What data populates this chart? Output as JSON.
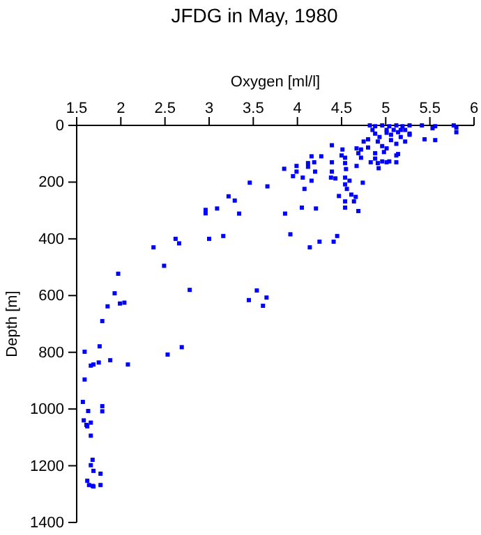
{
  "chart_data": {
    "type": "scatter",
    "title": "JFDG in May, 1980",
    "xlabel": "Oxygen [ml/l]",
    "ylabel": "Depth [m]",
    "xlim": [
      1.5,
      6
    ],
    "xticks": [
      1.5,
      2,
      2.5,
      3,
      3.5,
      4,
      4.5,
      5,
      5.5,
      6
    ],
    "ylim": [
      1400,
      0
    ],
    "yticks": [
      0,
      200,
      400,
      600,
      800,
      1000,
      1200,
      1400
    ],
    "marker": "square",
    "grid": false,
    "series": [
      {
        "color": "#0000ff",
        "x": [
          4.82,
          4.88,
          4.96,
          5.04,
          5.12,
          5.19,
          5.27,
          5.41,
          5.56,
          5.77,
          5.8,
          4.85,
          5.01,
          5.09,
          5.17,
          5.22,
          4.88,
          5.01,
          5.14,
          5.27,
          5.53,
          5.8,
          4.8,
          4.91,
          5.06,
          5.17,
          5.27,
          5.44,
          5.56,
          4.75,
          4.93,
          5.06,
          5.22,
          4.96,
          5.12,
          4.8,
          5.01,
          4.39,
          4.67,
          4.51,
          4.72,
          4.88,
          4.98,
          5.12,
          4.5,
          4.69,
          4.88,
          5.14,
          5.01,
          4.16,
          4.27,
          4.54,
          4.72,
          4.83,
          4.96,
          5.12,
          4.39,
          4.54,
          4.67,
          4.91,
          5.04,
          4.55,
          4.92,
          4.12,
          4.19,
          4.39,
          4.2,
          3.99,
          3.85,
          4.12,
          4.74,
          4.54,
          4.54,
          4.59,
          4.38,
          4.56,
          4.61,
          4.66,
          4.47,
          4.54,
          4.64,
          3.99,
          4.43,
          4.06,
          4.16,
          3.95,
          4.08,
          3.46,
          3.66,
          3.22,
          3.29,
          2.96,
          2.96,
          3.09,
          3.34,
          3.86,
          4.05,
          4.21,
          4.54,
          4.69,
          3.92,
          4.14,
          4.25,
          4.41,
          4.45,
          3.0,
          3.16,
          2.62,
          2.66,
          2.37,
          2.49,
          1.97,
          2.78,
          1.93,
          1.85,
          1.99,
          2.04,
          1.79,
          3.45,
          3.54,
          3.61,
          3.65,
          1.59,
          1.76,
          1.88,
          2.69,
          2.53,
          1.66,
          1.69,
          1.75,
          2.08,
          1.59,
          1.57,
          1.63,
          1.79,
          1.79,
          1.58,
          1.61,
          1.66,
          1.62,
          1.66,
          1.68,
          1.66,
          1.69,
          1.77,
          1.62,
          1.64,
          1.68,
          1.69,
          1.77
        ],
        "values": [
          0,
          3,
          0,
          3,
          0,
          3,
          0,
          0,
          3,
          0,
          8,
          16,
          16,
          16,
          16,
          16,
          29,
          26,
          24,
          29,
          10,
          24,
          49,
          57,
          33,
          41,
          33,
          49,
          52,
          57,
          41,
          52,
          57,
          73,
          65,
          78,
          81,
          70,
          81,
          85,
          85,
          98,
          94,
          106,
          106,
          98,
          117,
          101,
          130,
          109,
          109,
          114,
          114,
          130,
          127,
          130,
          130,
          133,
          143,
          133,
          127,
          154,
          151,
          133,
          130,
          163,
          163,
          143,
          153,
          146,
          202,
          184,
          208,
          195,
          184,
          224,
          244,
          252,
          249,
          268,
          268,
          163,
          187,
          184,
          195,
          179,
          224,
          202,
          215,
          250,
          265,
          298,
          310,
          293,
          311,
          311,
          290,
          293,
          290,
          302,
          384,
          430,
          410,
          410,
          390,
          400,
          390,
          400,
          416,
          430,
          495,
          523,
          580,
          592,
          638,
          628,
          625,
          690,
          616,
          582,
          636,
          607,
          798,
          779,
          828,
          782,
          808,
          847,
          843,
          836,
          843,
          896,
          975,
          1007,
          990,
          1008,
          1040,
          1056,
          1048,
          1061,
          1094,
          1179,
          1198,
          1218,
          1228,
          1253,
          1268,
          1271,
          1273,
          1268
        ]
      }
    ]
  }
}
